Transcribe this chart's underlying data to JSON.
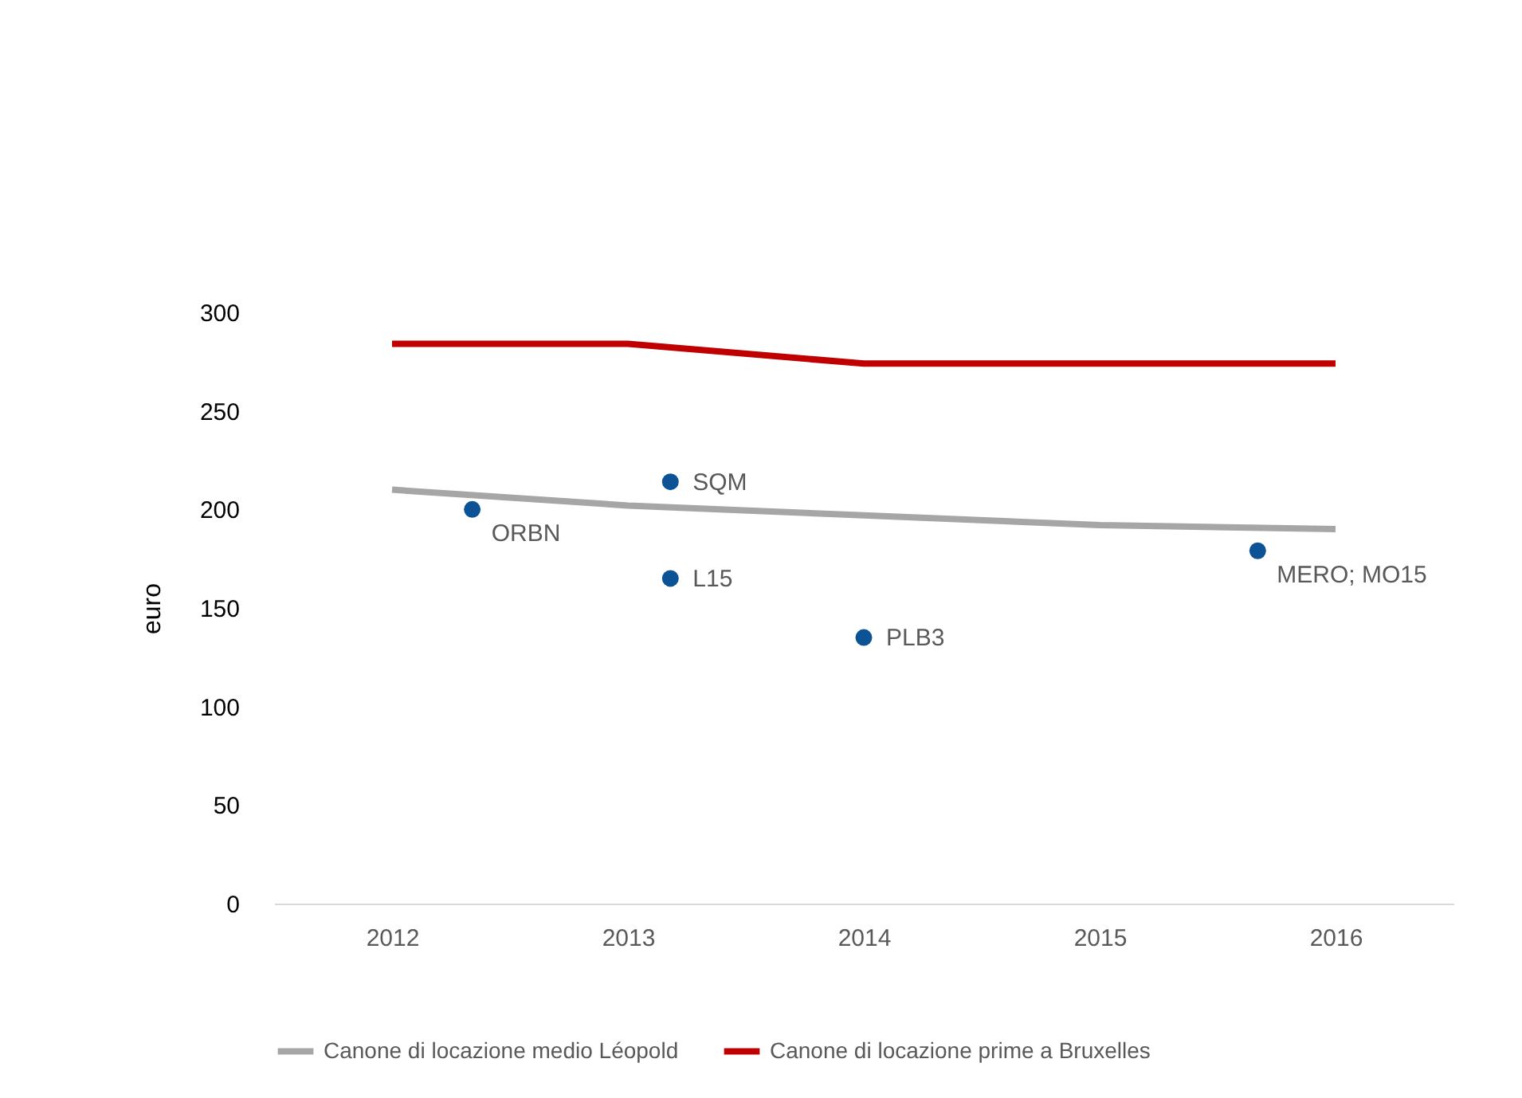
{
  "chart_data": {
    "type": "line",
    "ylabel": "euro",
    "x": [
      2012,
      2013,
      2014,
      2015,
      2016
    ],
    "series": [
      {
        "name": "Canone di locazione medio Léopold",
        "color": "#a6a6a6",
        "values": [
          210,
          202,
          197,
          192,
          190
        ]
      },
      {
        "name": "Canone di locazione prime a Bruxelles",
        "color": "#c00000",
        "values": [
          284,
          284,
          274,
          274,
          274
        ]
      },
      {
        "type": "scatter",
        "marker": "circle",
        "color": "#0b5394",
        "x": [
          2012.34,
          2013.18,
          2013.18,
          2014.0,
          2015.67
        ],
        "values": [
          200,
          214,
          165,
          135,
          179
        ]
      }
    ],
    "annotations": [
      {
        "text": "ORBN",
        "x": 2012.34,
        "y": 200
      },
      {
        "text": "SQM",
        "x": 2013.18,
        "y": 214
      },
      {
        "text": "L15",
        "x": 2013.18,
        "y": 165
      },
      {
        "text": "PLB3",
        "x": 2014.0,
        "y": 135
      },
      {
        "text": "MERO; MO15",
        "x": 2015.67,
        "y": 179
      }
    ],
    "xlim": [
      2011.5,
      2016.5
    ],
    "xticks": [
      2012,
      2013,
      2014,
      2015,
      2016
    ],
    "ylim": [
      0,
      300
    ],
    "yticks": [
      0,
      50,
      100,
      150,
      200,
      250,
      300
    ],
    "grid": false,
    "legend": "bottom",
    "line_style": "solid"
  }
}
